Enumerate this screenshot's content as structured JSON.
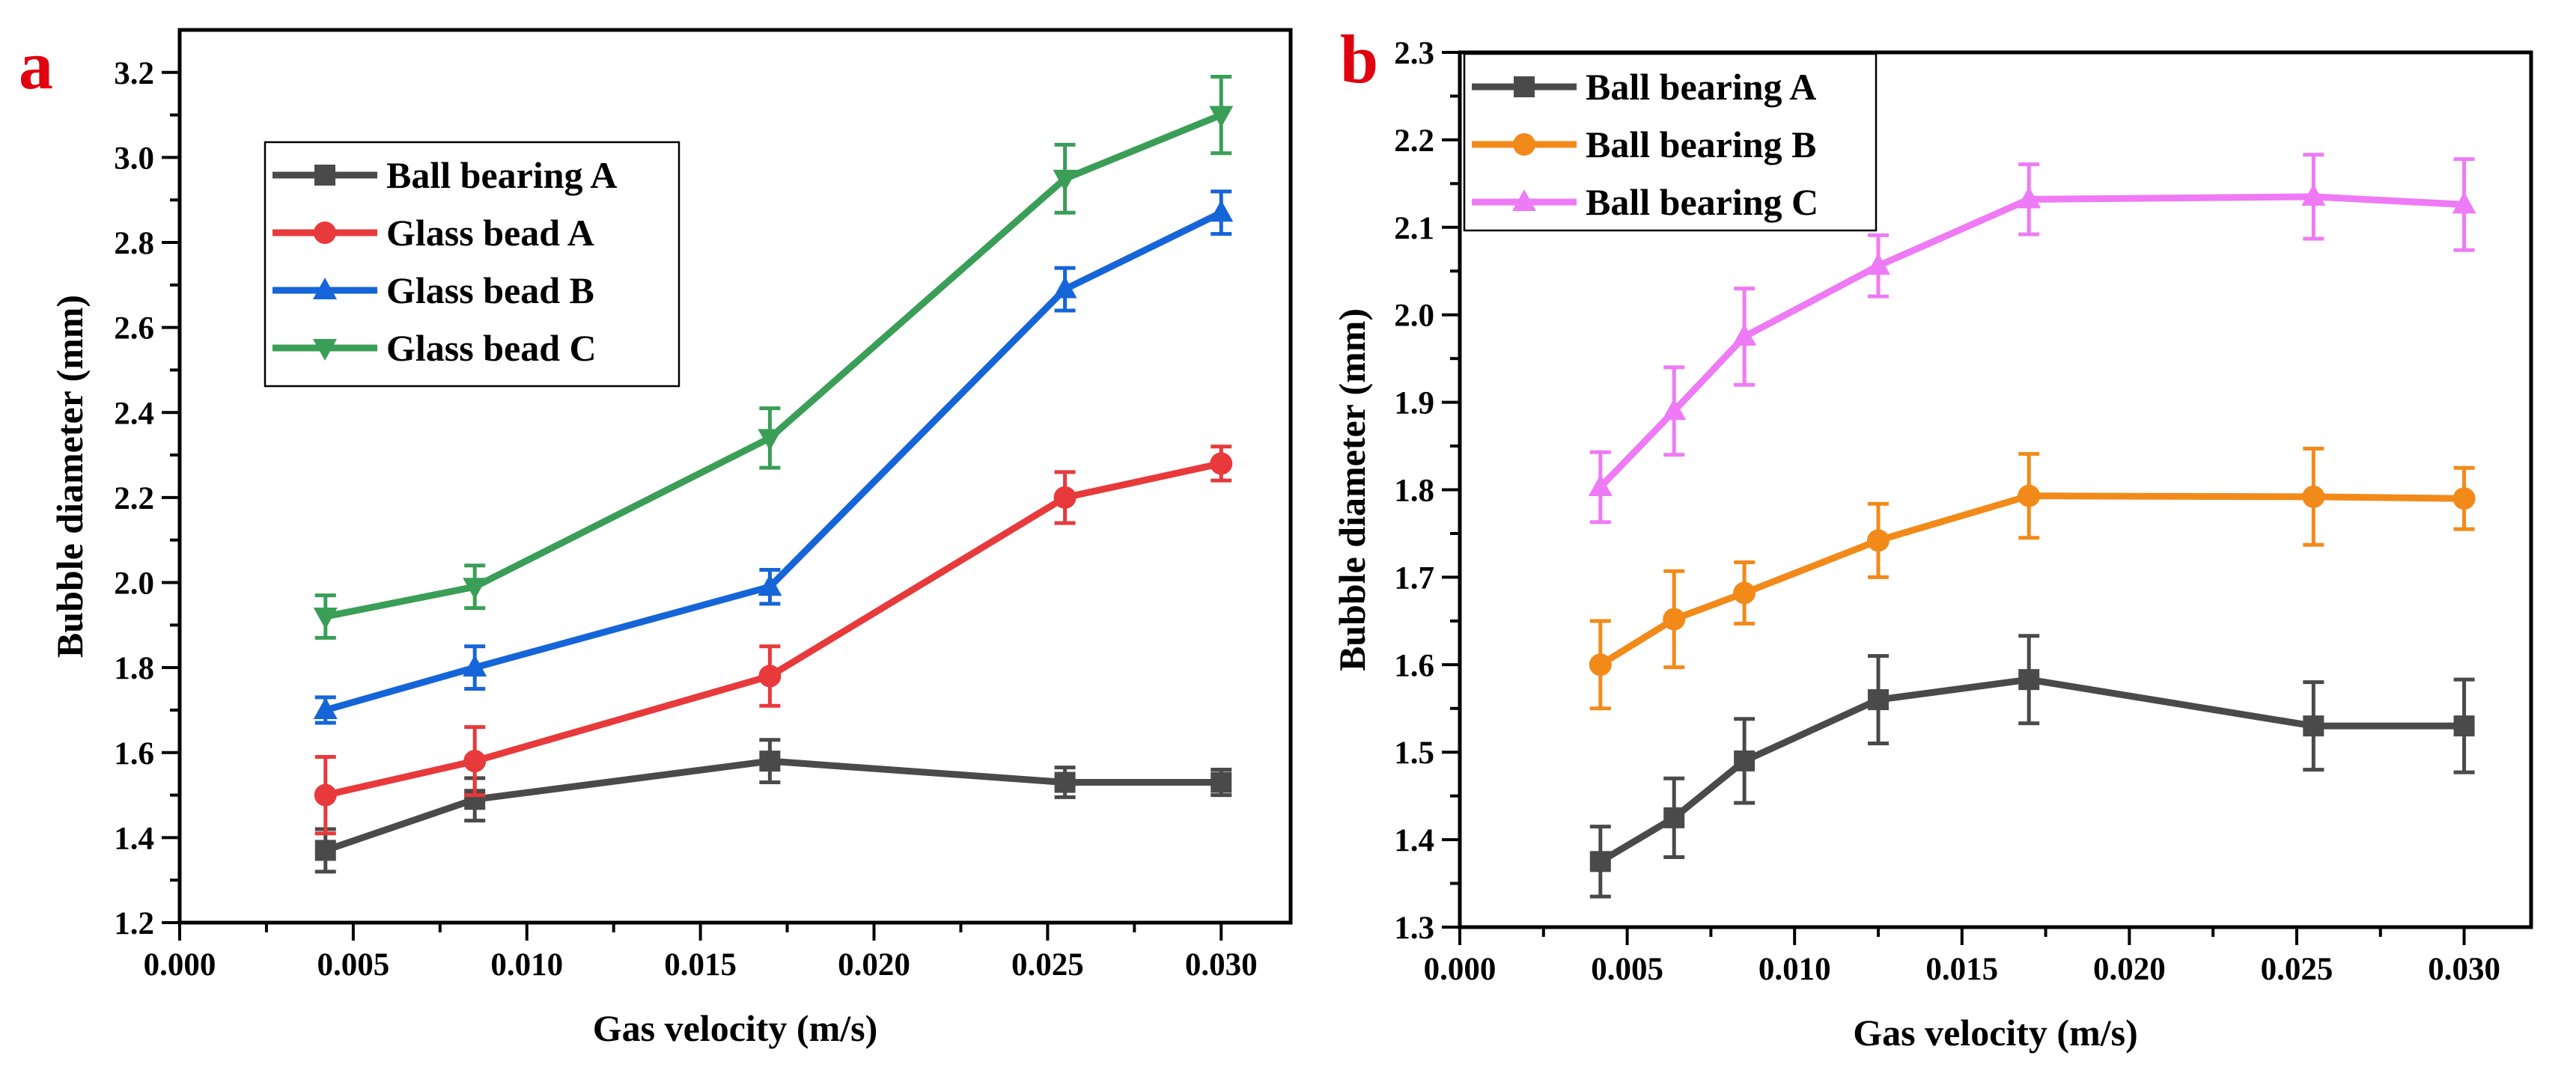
{
  "chart_data": [
    {
      "type": "line",
      "panel_label": "a",
      "xlabel": "Gas velocity (m/s)",
      "ylabel": "Bubble diameter (mm)",
      "xlim": [
        0.0,
        0.032
      ],
      "ylim": [
        1.2,
        3.3
      ],
      "xticks": [
        "0.000",
        "0.005",
        "0.010",
        "0.015",
        "0.020",
        "0.025",
        "0.030"
      ],
      "xtick_values": [
        0.0,
        0.005,
        0.01,
        0.015,
        0.02,
        0.025,
        0.03
      ],
      "yticks": [
        "1.2",
        "1.4",
        "1.6",
        "1.8",
        "2.0",
        "2.2",
        "2.4",
        "2.6",
        "2.8",
        "3.0",
        "3.2"
      ],
      "ytick_values": [
        1.2,
        1.4,
        1.6,
        1.8,
        2.0,
        2.2,
        2.4,
        2.6,
        2.8,
        3.0,
        3.2
      ],
      "x": [
        0.0042,
        0.0085,
        0.017,
        0.0255,
        0.03
      ],
      "legend_position": "top-left",
      "series": [
        {
          "name": "Ball bearing A",
          "color": "#4a4a4a",
          "marker": "square",
          "values": [
            1.37,
            1.49,
            1.58,
            1.53,
            1.53
          ],
          "errors": [
            0.05,
            0.05,
            0.05,
            0.035,
            0.03
          ]
        },
        {
          "name": "Glass bead A",
          "color": "#e8393b",
          "marker": "circle",
          "values": [
            1.5,
            1.58,
            1.78,
            2.2,
            2.28
          ],
          "errors": [
            0.09,
            0.08,
            0.07,
            0.06,
            0.04
          ]
        },
        {
          "name": "Glass bead B",
          "color": "#1565d8",
          "marker": "triangle-up",
          "values": [
            1.7,
            1.8,
            1.99,
            2.69,
            2.87
          ],
          "errors": [
            0.03,
            0.05,
            0.04,
            0.05,
            0.05
          ]
        },
        {
          "name": "Glass bead C",
          "color": "#3a9e57",
          "marker": "triangle-down",
          "values": [
            1.92,
            1.99,
            2.34,
            2.95,
            3.1
          ],
          "errors": [
            0.05,
            0.05,
            0.07,
            0.08,
            0.09
          ]
        }
      ]
    },
    {
      "type": "line",
      "panel_label": "b",
      "xlabel": "Gas velocity (m/s)",
      "ylabel": "Bubble diameter (mm)",
      "xlim": [
        0.0,
        0.032
      ],
      "ylim": [
        1.3,
        2.3
      ],
      "xticks": [
        "0.000",
        "0.005",
        "0.010",
        "0.015",
        "0.020",
        "0.025",
        "0.030"
      ],
      "xtick_values": [
        0.0,
        0.005,
        0.01,
        0.015,
        0.02,
        0.025,
        0.03
      ],
      "yticks": [
        "1.3",
        "1.4",
        "1.5",
        "1.6",
        "1.7",
        "1.8",
        "1.9",
        "2.0",
        "2.1",
        "2.2",
        "2.3"
      ],
      "ytick_values": [
        1.3,
        1.4,
        1.5,
        1.6,
        1.7,
        1.8,
        1.9,
        2.0,
        2.1,
        2.2,
        2.3
      ],
      "x": [
        0.0042,
        0.0064,
        0.0085,
        0.0125,
        0.017,
        0.0255,
        0.03
      ],
      "legend_position": "top-left",
      "series": [
        {
          "name": "Ball bearing A",
          "color": "#4a4a4a",
          "marker": "square",
          "values": [
            1.375,
            1.425,
            1.49,
            1.56,
            1.583,
            1.53,
            1.53
          ],
          "errors": [
            0.04,
            0.045,
            0.048,
            0.05,
            0.05,
            0.05,
            0.053
          ]
        },
        {
          "name": "Ball bearing B",
          "color": "#f28a1a",
          "marker": "circle",
          "values": [
            1.6,
            1.652,
            1.682,
            1.742,
            1.793,
            1.792,
            1.79
          ],
          "errors": [
            0.05,
            0.055,
            0.035,
            0.042,
            0.048,
            0.055,
            0.035
          ]
        },
        {
          "name": "Ball bearing C",
          "color": "#ef7af5",
          "marker": "triangle-up",
          "values": [
            1.803,
            1.89,
            1.975,
            2.056,
            2.132,
            2.135,
            2.126
          ],
          "errors": [
            0.04,
            0.05,
            0.055,
            0.035,
            0.04,
            0.048,
            0.052
          ]
        }
      ]
    }
  ]
}
